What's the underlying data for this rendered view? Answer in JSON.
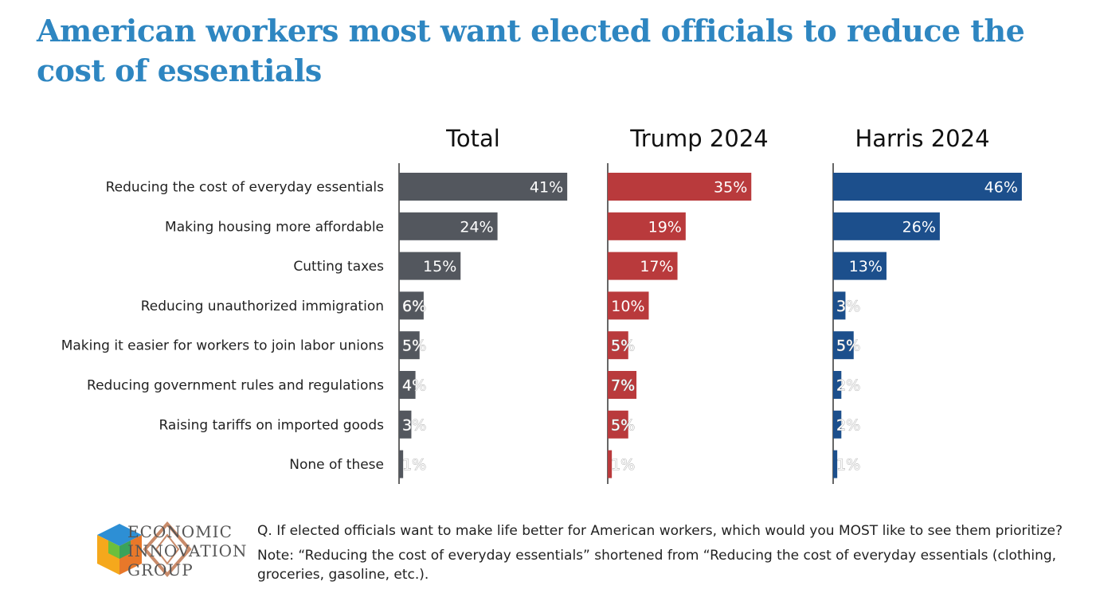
{
  "title": "American workers most want elected officials to reduce the cost of essentials",
  "chart_data": {
    "type": "bar",
    "orientation": "horizontal",
    "categories": [
      "Reducing the cost of everyday essentials",
      "Making housing more affordable",
      "Cutting taxes",
      "Reducing unauthorized immigration",
      "Making it easier for workers to join labor unions",
      "Reducing government rules and regulations",
      "Raising tariffs on imported goods",
      "None of these"
    ],
    "series": [
      {
        "name": "Total",
        "color": "#53575e",
        "values": [
          41,
          24,
          15,
          6,
          5,
          4,
          3,
          1
        ]
      },
      {
        "name": "Trump 2024",
        "color": "#b93a3c",
        "values": [
          35,
          19,
          17,
          10,
          5,
          7,
          5,
          1
        ]
      },
      {
        "name": "Harris 2024",
        "color": "#1c4f8c",
        "values": [
          46,
          26,
          13,
          3,
          5,
          2,
          2,
          1
        ]
      }
    ],
    "value_suffix": "%",
    "xlim": [
      0,
      50
    ]
  },
  "footer": {
    "logo_lines": [
      "ECONOMIC",
      "INNOVATION",
      "GROUP"
    ],
    "question": "Q. If elected officials want to make life better for American workers, which would you MOST like to see them prioritize?",
    "note": "Note: “Reducing the cost of everyday essentials” shortened from “Reducing the cost of everyday essentials (clothing, groceries, gasoline, etc.)."
  }
}
